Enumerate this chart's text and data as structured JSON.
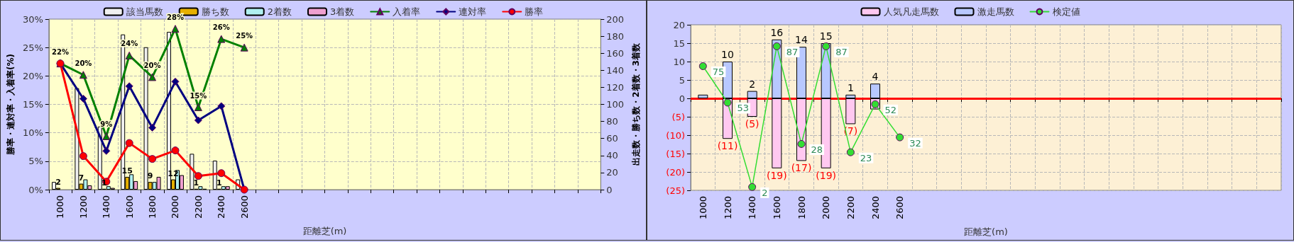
{
  "chart_data": [
    {
      "type": "bar",
      "xlabel": "距離芝(m)",
      "ylabel": "勝率・連対率・入着率(%)",
      "y2label": "出走数・勝ち数・2着数・3着数",
      "legend": "top",
      "grid": true,
      "categories": [
        "1000",
        "1200",
        "1400",
        "1600",
        "1800",
        "2000",
        "2200",
        "2400",
        "2600",
        null,
        null,
        null,
        null,
        null,
        null,
        null,
        null,
        null,
        null,
        null,
        null,
        null,
        null,
        null
      ],
      "ylim": [
        0,
        30
      ],
      "yticks": [
        {
          "value": 0,
          "label": "0%"
        },
        {
          "value": 5,
          "label": "5%"
        },
        {
          "value": 10,
          "label": "10%"
        },
        {
          "value": 15,
          "label": "15%"
        },
        {
          "value": 20,
          "label": "20%"
        },
        {
          "value": 25,
          "label": "25%"
        },
        {
          "value": 30,
          "label": "30%"
        }
      ],
      "y2lim": [
        0,
        200
      ],
      "y2ticks": [
        0,
        20,
        40,
        60,
        80,
        100,
        120,
        140,
        160,
        180,
        200
      ],
      "series": [
        {
          "name": "該当馬数",
          "axis": "y2",
          "color": "#f0f0f0",
          "values": [
            9,
            119,
            74,
            182,
            167,
            185,
            42,
            34,
            12,
            null,
            null,
            null,
            null,
            null,
            null,
            null,
            null,
            null,
            null,
            null,
            null,
            null,
            null,
            null
          ]
        },
        {
          "name": "勝ち数",
          "axis": "y2",
          "color": "#e6b000",
          "values": [
            2,
            7,
            1,
            15,
            9,
            12,
            1,
            1,
            0,
            null,
            null,
            null,
            null,
            null,
            null,
            null,
            null,
            null,
            null,
            null,
            null,
            null,
            null,
            null
          ],
          "value_labels": [
            "2",
            "7",
            "1",
            "15",
            "9",
            "12",
            "1",
            "1",
            null,
            null,
            null,
            null,
            null,
            null,
            null,
            null,
            null,
            null,
            null,
            null,
            null,
            null,
            null,
            null
          ]
        },
        {
          "name": "2着数",
          "axis": "y2",
          "color": "#b0f0f0",
          "values": [
            0,
            12,
            4,
            18,
            9,
            23,
            4,
            4,
            0,
            null,
            null,
            null,
            null,
            null,
            null,
            null,
            null,
            null,
            null,
            null,
            null,
            null,
            null,
            null
          ]
        },
        {
          "name": "3着数",
          "axis": "y2",
          "color": "#f0a0d0",
          "values": [
            0,
            5,
            2,
            10,
            15,
            17,
            1,
            4,
            0,
            null,
            null,
            null,
            null,
            null,
            null,
            null,
            null,
            null,
            null,
            null,
            null,
            null,
            null,
            null
          ]
        },
        {
          "name": "入着率",
          "type": "line",
          "marker": "triangle",
          "color": "#008000",
          "values": [
            22.2,
            20.2,
            9.4,
            23.6,
            19.8,
            28.3,
            14.5,
            26.5,
            25,
            null,
            null,
            null,
            null,
            null,
            null,
            null,
            null,
            null,
            null,
            null,
            null,
            null,
            null,
            null
          ],
          "value_labels": [
            "22%",
            "20%",
            "9%",
            "24%",
            "20%",
            "28%",
            "15%",
            "26%",
            "25%",
            null,
            null,
            null,
            null,
            null,
            null,
            null,
            null,
            null,
            null,
            null,
            null,
            null,
            null,
            null
          ]
        },
        {
          "name": "連対率",
          "type": "line",
          "marker": "diamond",
          "color": "#000080",
          "values": [
            22.2,
            16,
            6.8,
            18.2,
            10.9,
            19,
            12.2,
            14.7,
            0,
            null,
            null,
            null,
            null,
            null,
            null,
            null,
            null,
            null,
            null,
            null,
            null,
            null,
            null,
            null
          ]
        },
        {
          "name": "勝率",
          "type": "line",
          "marker": "circle",
          "color": "#ff0000",
          "values": [
            22.2,
            5.9,
            1.4,
            8.2,
            5.4,
            6.9,
            2.4,
            2.9,
            0,
            null,
            null,
            null,
            null,
            null,
            null,
            null,
            null,
            null,
            null,
            null,
            null,
            null,
            null,
            null
          ]
        }
      ]
    },
    {
      "type": "bar",
      "xlabel": "距離芝(m)",
      "legend": "top",
      "grid": true,
      "stacked": true,
      "categories": [
        "1000",
        "1200",
        "1400",
        "1600",
        "1800",
        "2000",
        "2200",
        "2400",
        "2600",
        null,
        null,
        null,
        null,
        null,
        null,
        null,
        null,
        null,
        null,
        null,
        null,
        null,
        null,
        null
      ],
      "ylim": [
        -25,
        20
      ],
      "yticks": [
        {
          "value": -25,
          "label": "(25)"
        },
        {
          "value": -20,
          "label": "(20)"
        },
        {
          "value": -15,
          "label": "(15)"
        },
        {
          "value": -10,
          "label": "(10)"
        },
        {
          "value": -5,
          "label": "(5)"
        },
        0,
        5,
        10,
        15,
        20
      ],
      "y2lim": [
        0,
        100
      ],
      "ref_lines": [
        {
          "axis": "y",
          "value": 0,
          "color": "#ff0000"
        }
      ],
      "series": [
        {
          "name": "人気凡走馬数",
          "color": "#ffc8f0",
          "values": [
            0,
            -11,
            -5,
            -19,
            -17,
            -19,
            -7,
            -3,
            null,
            null,
            null,
            null,
            null,
            null,
            null,
            null,
            null,
            null,
            null,
            null,
            null,
            null,
            null,
            null
          ],
          "value_labels": [
            null,
            "(11)",
            "(5)",
            "(19)",
            "(17)",
            "(19)",
            "(7)",
            null,
            null,
            null,
            null,
            null,
            null,
            null,
            null,
            null,
            null,
            null,
            null,
            null,
            null,
            null,
            null,
            null
          ]
        },
        {
          "name": "激走馬数",
          "color": "#b8c8ff",
          "values": [
            1,
            10,
            2,
            16,
            14,
            15,
            1,
            4,
            null,
            null,
            null,
            null,
            null,
            null,
            null,
            null,
            null,
            null,
            null,
            null,
            null,
            null,
            null,
            null
          ],
          "value_labels": [
            null,
            "10",
            "2",
            "16",
            "14",
            "15",
            "1",
            "4",
            null,
            null,
            null,
            null,
            null,
            null,
            null,
            null,
            null,
            null,
            null,
            null,
            null,
            null,
            null,
            null
          ]
        },
        {
          "name": "検定値",
          "type": "line",
          "axis": "y2",
          "marker": "circle",
          "color": "#33dd33",
          "values": [
            75,
            53,
            2,
            87,
            28,
            87,
            23,
            52,
            32,
            null,
            null,
            null,
            null,
            null,
            null,
            null,
            null,
            null,
            null,
            null,
            null,
            null,
            null,
            null
          ],
          "value_labels": [
            "75",
            "53",
            "2",
            "87",
            "28",
            "87",
            "23",
            "52",
            "32",
            null,
            null,
            null,
            null,
            null,
            null,
            null,
            null,
            null,
            null,
            null,
            null,
            null,
            null,
            null
          ]
        }
      ]
    }
  ]
}
